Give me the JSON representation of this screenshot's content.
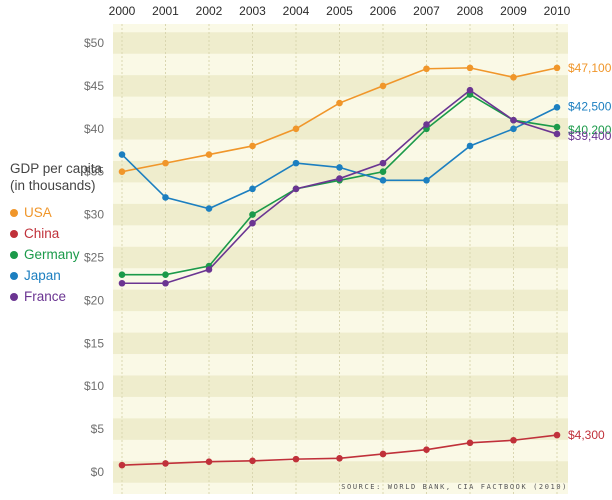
{
  "chart_data": {
    "type": "line",
    "title": "",
    "ylabel": "GDP per capita (in thousands)",
    "xlabel": "",
    "x": [
      "2000",
      "2001",
      "2002",
      "2003",
      "2004",
      "2005",
      "2006",
      "2007",
      "2008",
      "2009",
      "2010"
    ],
    "ylim": [
      0,
      50
    ],
    "yticks": [
      0,
      5,
      10,
      15,
      20,
      25,
      30,
      35,
      40,
      45,
      50
    ],
    "ytick_labels": [
      "$0",
      "$5",
      "$10",
      "$15",
      "$20",
      "$25",
      "$30",
      "$35",
      "$40",
      "$45",
      "$50"
    ],
    "grid": "alternating horizontal bands",
    "legend_position": "left",
    "series": [
      {
        "name": "USA",
        "color": "#F0962A",
        "values": [
          35.0,
          36.0,
          37.0,
          38.0,
          40.0,
          43.0,
          45.0,
          47.0,
          47.1,
          46.0,
          47.1
        ],
        "end_label": "$47,100"
      },
      {
        "name": "China",
        "color": "#C0313A",
        "values": [
          0.8,
          1.0,
          1.2,
          1.3,
          1.5,
          1.6,
          2.1,
          2.6,
          3.4,
          3.7,
          4.3
        ],
        "end_label": "$4,300"
      },
      {
        "name": "Germany",
        "color": "#1B9A4A",
        "values": [
          23.0,
          23.0,
          24.0,
          30.0,
          33.0,
          34.0,
          35.0,
          40.0,
          44.0,
          41.0,
          40.2
        ],
        "end_label": "$40,200"
      },
      {
        "name": "Japan",
        "color": "#1C7FC0",
        "values": [
          37.0,
          32.0,
          30.7,
          33.0,
          36.0,
          35.5,
          34.0,
          34.0,
          38.0,
          40.0,
          42.5
        ],
        "end_label": "$42,500"
      },
      {
        "name": "France",
        "color": "#6B3592",
        "values": [
          22.0,
          22.0,
          23.6,
          29.0,
          33.0,
          34.2,
          36.0,
          40.5,
          44.5,
          41.0,
          39.4
        ],
        "end_label": "$39,400"
      }
    ],
    "source": "SOURCE: WORLD BANK, CIA FACTBOOK (2010)"
  },
  "legend": {
    "title": "GDP per capita (in thousands)",
    "items": [
      "USA",
      "China",
      "Germany",
      "Japan",
      "France"
    ]
  }
}
